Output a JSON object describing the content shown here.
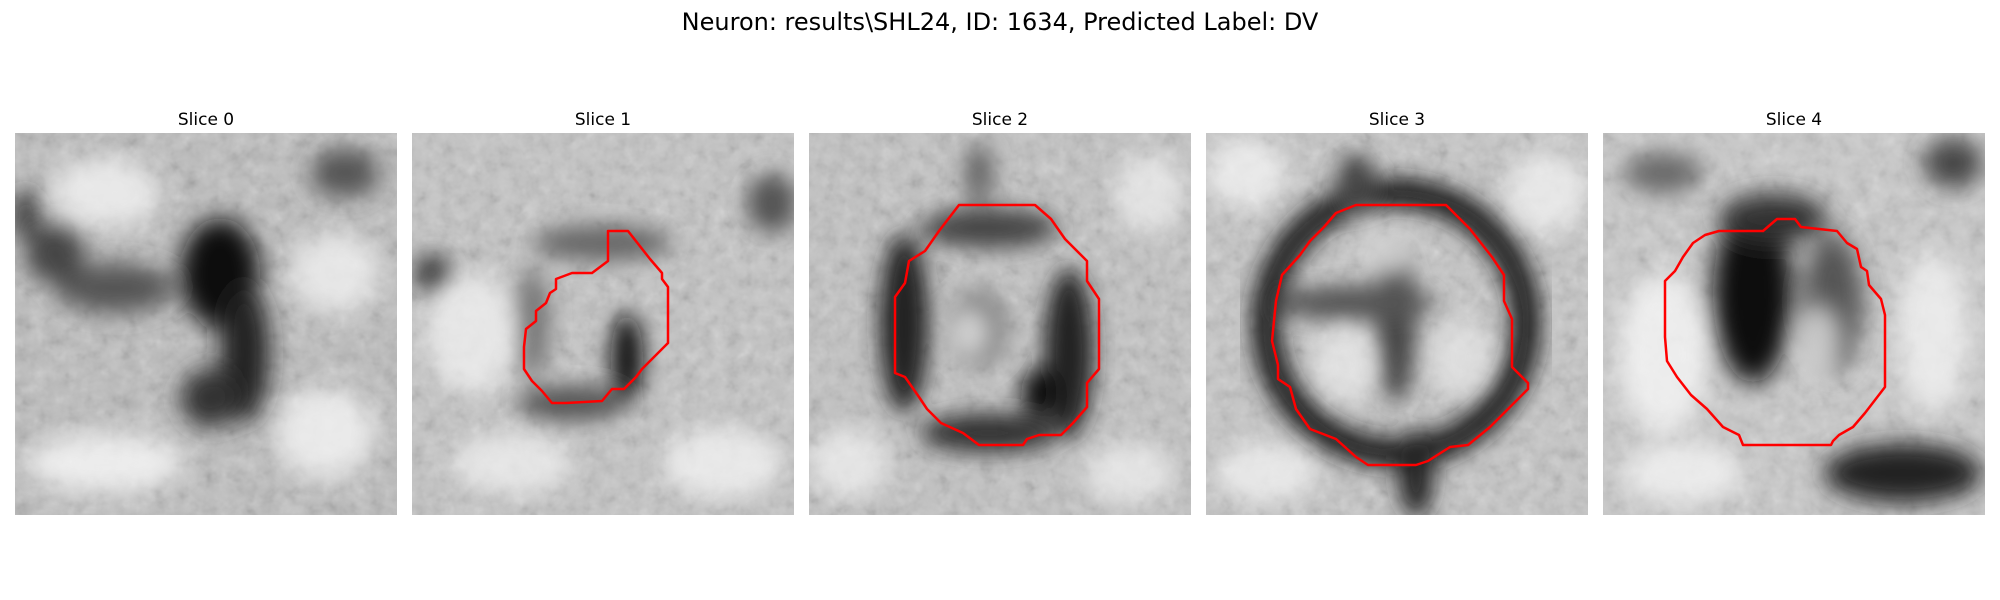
{
  "figure": {
    "title": "Neuron: results\\SHL24, ID: 1634, Predicted Label: DV"
  },
  "panels": [
    {
      "title": "Slice 0",
      "has_contour": false,
      "contour_color": "#ff0000"
    },
    {
      "title": "Slice 1",
      "has_contour": true,
      "contour_color": "#ff0000"
    },
    {
      "title": "Slice 2",
      "has_contour": true,
      "contour_color": "#ff0000"
    },
    {
      "title": "Slice 3",
      "has_contour": true,
      "contour_color": "#ff0000"
    },
    {
      "title": "Slice 4",
      "has_contour": true,
      "contour_color": "#ff0000"
    }
  ],
  "colors": {
    "background": "#ffffff",
    "contour": "#ff0000"
  }
}
